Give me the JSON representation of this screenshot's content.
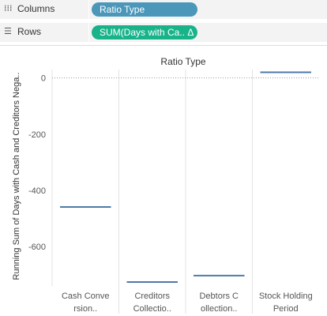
{
  "shelves": {
    "columns": {
      "label": "Columns",
      "icon": "columns-icon",
      "pill": "Ratio Type"
    },
    "rows": {
      "label": "Rows",
      "icon": "rows-icon",
      "pill": "SUM(Days with Ca.. Δ"
    }
  },
  "colors": {
    "columns_pill": "#4a97b9",
    "rows_pill": "#19b38a",
    "mark": "#4e79a7"
  },
  "chart_data": {
    "type": "bar",
    "mark_style": "gantt-line",
    "title": "Ratio Type",
    "ylabel": "Running Sum of Days with Cash and Creditors Nega..",
    "categories": [
      [
        "Cash Conve",
        "rsion.."
      ],
      [
        "Creditors",
        "Collectio.."
      ],
      [
        "Debtors C",
        "ollection.."
      ],
      [
        "Stock Holding",
        "Period"
      ]
    ],
    "values": [
      -459,
      -726,
      -703,
      20
    ],
    "ylim": [
      -740,
      30
    ],
    "yticks": [
      0,
      -200,
      -400,
      -600
    ],
    "grid": false,
    "zero_line": "dotted"
  }
}
